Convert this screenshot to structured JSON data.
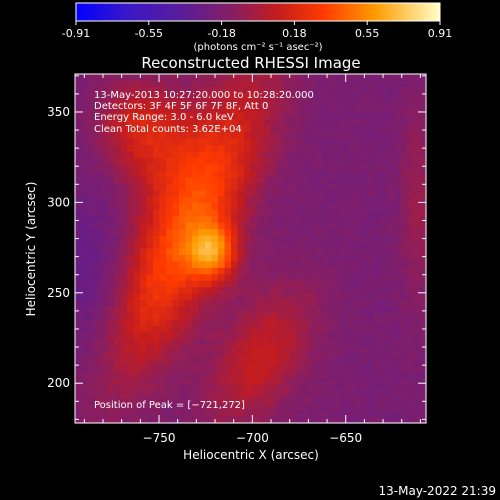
{
  "colorbar": {
    "min": -0.91,
    "max": 0.91,
    "tick_labels": [
      "-0.91",
      "-0.55",
      "-0.18",
      "0.18",
      "0.55",
      "0.91"
    ],
    "unit_label": "(photons cm⁻² s⁻¹ asec⁻²)",
    "colors": [
      "#0000ff",
      "#3b17c8",
      "#5c1d95",
      "#ae1f2c",
      "#ff1600",
      "#ff6a00",
      "#ffc000",
      "#ffffc8"
    ]
  },
  "chart_data": {
    "type": "heatmap",
    "title": "Reconstructed RHESSI Image",
    "xlabel": "Heliocentric X (arcsec)",
    "ylabel": "Heliocentric Y (arcsec)",
    "xlim": [
      -795,
      -607
    ],
    "ylim": [
      178,
      371
    ],
    "x_ticks": [
      -750,
      -700,
      -650
    ],
    "y_ticks": [
      200,
      250,
      300,
      350
    ],
    "x_tick_labels": [
      "−750",
      "−700",
      "−650"
    ],
    "y_tick_labels": [
      "200",
      "250",
      "300",
      "350"
    ],
    "peak": {
      "x": -721,
      "y": 272,
      "value": 0.91
    },
    "background_level": -0.2,
    "info_lines": [
      "13-May-2013 10:27:20.000 to 10:28:20.000",
      "Detectors: 3F 4F 5F 6F 7F 8F, Att 0",
      "Energy Range: 3.0 - 6.0 keV",
      "Clean     Total counts: 3.62E+04"
    ],
    "peak_text": "Position of Peak = [−721,272]"
  },
  "footer": {
    "timestamp": "13-May-2022 21:39"
  }
}
